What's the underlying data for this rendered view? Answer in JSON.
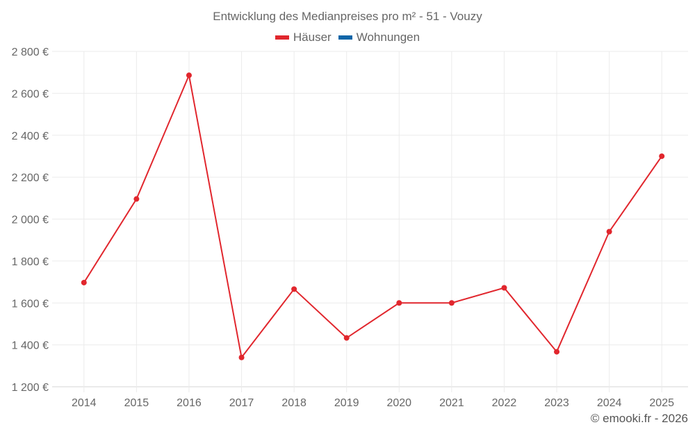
{
  "title": "Entwicklung des Medianpreises pro m² - 51 - Vouzy",
  "legend": [
    {
      "label": "Häuser",
      "color": "#e1262d"
    },
    {
      "label": "Wohnungen",
      "color": "#0e66a8"
    }
  ],
  "footer": "© emooki.fr - 2026",
  "chart_data": {
    "type": "line",
    "title": "Entwicklung des Medianpreises pro m² - 51 - Vouzy",
    "xlabel": "",
    "ylabel": "",
    "categories": [
      "2014",
      "2015",
      "2016",
      "2017",
      "2018",
      "2019",
      "2020",
      "2021",
      "2022",
      "2023",
      "2024",
      "2025"
    ],
    "series": [
      {
        "name": "Häuser",
        "color": "#e1262d",
        "values": [
          1697,
          2096,
          2686,
          1340,
          1666,
          1433,
          1600,
          1600,
          1672,
          1367,
          1940,
          2300
        ]
      },
      {
        "name": "Wohnungen",
        "color": "#0e66a8",
        "values": []
      }
    ],
    "ylim": [
      1200,
      2800
    ],
    "yticks": [
      1200,
      1400,
      1600,
      1800,
      2000,
      2200,
      2400,
      2600,
      2800
    ],
    "ytick_labels": [
      "1 200 €",
      "1 400 €",
      "1 600 €",
      "1 800 €",
      "2 000 €",
      "2 200 €",
      "2 400 €",
      "2 600 €",
      "2 800 €"
    ],
    "grid": true,
    "legend_position": "top"
  }
}
